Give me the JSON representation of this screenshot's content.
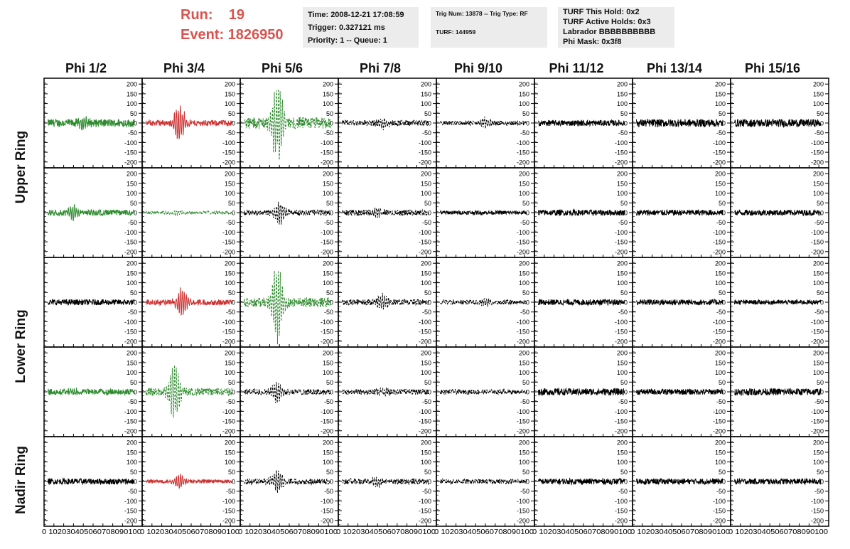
{
  "header": {
    "run": "Run:    19",
    "event": "Event: 1826950",
    "time": "Time: 2008-12-21 17:08:59",
    "trigger": "Trigger: 0.327121 ms",
    "priority": "Priority: 1 -- Queue: 1",
    "trig_num": "Trig Num: 13878 -- Trig Type: RF",
    "turf": "TURF: 144959",
    "turf_hold": "TURF This Hold: 0x2",
    "turf_active": "TURF Active Holds: 0x3",
    "labrador": "Labrador BBBBBBBBBB",
    "phi_mask": "Phi Mask: 0x3f8"
  },
  "columns": [
    "Phi 1/2",
    "Phi 3/4",
    "Phi 5/6",
    "Phi 7/8",
    "Phi 9/10",
    "Phi 11/12",
    "Phi 13/14",
    "Phi 15/16"
  ],
  "rings": [
    "Upper Ring",
    "Lower Ring",
    "Nadir Ring"
  ],
  "ring_rows": [
    [
      0,
      1
    ],
    [
      2,
      3
    ],
    [
      4
    ]
  ],
  "colors": {
    "green": "#2e8b2e",
    "red": "#cc3333",
    "black": "#000000",
    "event_text": "#d9534f",
    "info_bg": "#ececec"
  },
  "axes": {
    "y_ticks": [
      -200,
      -150,
      -100,
      -50,
      0,
      50,
      100,
      150,
      200
    ],
    "y_range": [
      -230,
      230
    ],
    "x_ticks": [
      0,
      10,
      20,
      30,
      40,
      50,
      60,
      70,
      80,
      90,
      100
    ],
    "x_range": [
      0,
      100
    ],
    "x_tick_text": "0 102030405060708090100"
  },
  "waveforms": [
    [
      {
        "color": "green",
        "dashed": false,
        "amp": 20,
        "burst": 40,
        "peak": 35
      },
      {
        "color": "red",
        "dashed": false,
        "amp": 15,
        "burst": 38,
        "peak": 110
      },
      {
        "color": "green",
        "dashed": true,
        "amp": 30,
        "burst": 38,
        "peak": 210
      },
      {
        "color": "black",
        "dashed": true,
        "amp": 15,
        "burst": 45,
        "peak": 30
      },
      {
        "color": "black",
        "dashed": true,
        "amp": 12,
        "burst": 50,
        "peak": 25
      },
      {
        "color": "black",
        "dashed": false,
        "amp": 15,
        "burst": 0,
        "peak": 0
      },
      {
        "color": "black",
        "dashed": false,
        "amp": 20,
        "burst": 0,
        "peak": 0
      },
      {
        "color": "black",
        "dashed": false,
        "amp": 20,
        "burst": 0,
        "peak": 0
      }
    ],
    [
      {
        "color": "green",
        "dashed": false,
        "amp": 15,
        "burst": 30,
        "peak": 45
      },
      {
        "color": "green",
        "dashed": true,
        "amp": 8,
        "burst": 35,
        "peak": 15
      },
      {
        "color": "black",
        "dashed": true,
        "amp": 15,
        "burst": 40,
        "peak": 60
      },
      {
        "color": "black",
        "dashed": true,
        "amp": 15,
        "burst": 40,
        "peak": 25
      },
      {
        "color": "black",
        "dashed": false,
        "amp": 10,
        "burst": 0,
        "peak": 0
      },
      {
        "color": "black",
        "dashed": false,
        "amp": 15,
        "burst": 0,
        "peak": 0
      },
      {
        "color": "black",
        "dashed": false,
        "amp": 15,
        "burst": 0,
        "peak": 0
      },
      {
        "color": "black",
        "dashed": false,
        "amp": 15,
        "burst": 0,
        "peak": 0
      }
    ],
    [
      {
        "color": "black",
        "dashed": false,
        "amp": 15,
        "burst": 0,
        "peak": 0
      },
      {
        "color": "red",
        "dashed": false,
        "amp": 15,
        "burst": 40,
        "peak": 80
      },
      {
        "color": "green",
        "dashed": true,
        "amp": 25,
        "burst": 38,
        "peak": 200
      },
      {
        "color": "black",
        "dashed": true,
        "amp": 15,
        "burst": 45,
        "peak": 40
      },
      {
        "color": "black",
        "dashed": true,
        "amp": 12,
        "burst": 50,
        "peak": 20
      },
      {
        "color": "black",
        "dashed": false,
        "amp": 15,
        "burst": 0,
        "peak": 0
      },
      {
        "color": "black",
        "dashed": false,
        "amp": 15,
        "burst": 0,
        "peak": 0
      },
      {
        "color": "black",
        "dashed": false,
        "amp": 12,
        "burst": 0,
        "peak": 0
      }
    ],
    [
      {
        "color": "green",
        "dashed": false,
        "amp": 15,
        "burst": 30,
        "peak": 20
      },
      {
        "color": "green",
        "dashed": true,
        "amp": 20,
        "burst": 33,
        "peak": 150
      },
      {
        "color": "black",
        "dashed": true,
        "amp": 15,
        "burst": 38,
        "peak": 60
      },
      {
        "color": "black",
        "dashed": true,
        "amp": 15,
        "burst": 45,
        "peak": 25
      },
      {
        "color": "black",
        "dashed": true,
        "amp": 12,
        "burst": 0,
        "peak": 0
      },
      {
        "color": "black",
        "dashed": false,
        "amp": 18,
        "burst": 0,
        "peak": 0
      },
      {
        "color": "black",
        "dashed": false,
        "amp": 15,
        "burst": 0,
        "peak": 0
      },
      {
        "color": "black",
        "dashed": false,
        "amp": 18,
        "burst": 0,
        "peak": 0
      }
    ],
    [
      {
        "color": "black",
        "dashed": false,
        "amp": 15,
        "burst": 0,
        "peak": 0
      },
      {
        "color": "red",
        "dashed": false,
        "amp": 10,
        "burst": 38,
        "peak": 40
      },
      {
        "color": "black",
        "dashed": true,
        "amp": 15,
        "burst": 38,
        "peak": 70
      },
      {
        "color": "black",
        "dashed": true,
        "amp": 15,
        "burst": 40,
        "peak": 25
      },
      {
        "color": "black",
        "dashed": true,
        "amp": 12,
        "burst": 0,
        "peak": 0
      },
      {
        "color": "black",
        "dashed": false,
        "amp": 15,
        "burst": 0,
        "peak": 0
      },
      {
        "color": "black",
        "dashed": false,
        "amp": 15,
        "burst": 0,
        "peak": 0
      },
      {
        "color": "black",
        "dashed": false,
        "amp": 15,
        "burst": 0,
        "peak": 0
      }
    ]
  ]
}
